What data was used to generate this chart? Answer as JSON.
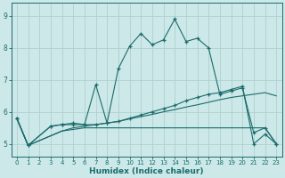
{
  "xlabel": "Humidex (Indice chaleur)",
  "xlim": [
    -0.5,
    23.5
  ],
  "ylim": [
    4.6,
    9.4
  ],
  "xticks": [
    0,
    1,
    2,
    3,
    4,
    5,
    6,
    7,
    8,
    9,
    10,
    11,
    12,
    13,
    14,
    15,
    16,
    17,
    18,
    19,
    20,
    21,
    22,
    23
  ],
  "yticks": [
    5,
    6,
    7,
    8,
    9
  ],
  "bg_color": "#cce8e8",
  "line_color": "#1a6b6b",
  "grid_color": "#b0d0d0",
  "lines": [
    {
      "x": [
        0,
        1,
        2,
        3,
        4,
        5,
        6,
        7,
        8,
        9,
        10,
        11,
        12,
        13,
        14,
        15,
        16,
        17,
        18,
        19,
        20,
        21,
        22,
        23
      ],
      "y": [
        5.8,
        4.95,
        5.1,
        5.25,
        5.4,
        5.45,
        5.5,
        5.5,
        5.5,
        5.5,
        5.5,
        5.5,
        5.5,
        5.5,
        5.5,
        5.5,
        5.5,
        5.5,
        5.5,
        5.5,
        5.5,
        5.5,
        5.5,
        5.0
      ],
      "marker": false
    },
    {
      "x": [
        0,
        1,
        2,
        3,
        4,
        5,
        6,
        7,
        8,
        9,
        10,
        11,
        12,
        13,
        14,
        15,
        16,
        17,
        18,
        19,
        20,
        21,
        22,
        23
      ],
      "y": [
        5.8,
        4.95,
        5.1,
        5.25,
        5.4,
        5.5,
        5.55,
        5.6,
        5.65,
        5.7,
        5.78,
        5.85,
        5.92,
        6.0,
        6.07,
        6.15,
        6.22,
        6.3,
        6.38,
        6.45,
        6.5,
        6.55,
        6.6,
        6.5
      ],
      "marker": false
    },
    {
      "x": [
        0,
        1,
        3,
        4,
        5,
        6,
        7,
        8,
        9,
        10,
        11,
        12,
        13,
        14,
        15,
        16,
        17,
        18,
        19,
        20,
        21,
        22,
        23
      ],
      "y": [
        5.8,
        4.95,
        5.55,
        5.6,
        5.6,
        5.6,
        5.6,
        5.65,
        5.7,
        5.8,
        5.9,
        6.0,
        6.1,
        6.2,
        6.35,
        6.45,
        6.55,
        6.6,
        6.7,
        6.8,
        5.0,
        5.3,
        5.0
      ],
      "marker": true
    },
    {
      "x": [
        0,
        1,
        3,
        4,
        5,
        6,
        7,
        8,
        9,
        10,
        11,
        12,
        13,
        14,
        15,
        16,
        17,
        18,
        19,
        20,
        21,
        22,
        23
      ],
      "y": [
        5.8,
        4.95,
        5.55,
        5.6,
        5.65,
        5.6,
        6.85,
        5.65,
        7.35,
        8.05,
        8.45,
        8.1,
        8.25,
        8.9,
        8.2,
        8.3,
        8.0,
        6.55,
        6.65,
        6.75,
        5.35,
        5.5,
        5.0
      ],
      "marker": true
    }
  ]
}
